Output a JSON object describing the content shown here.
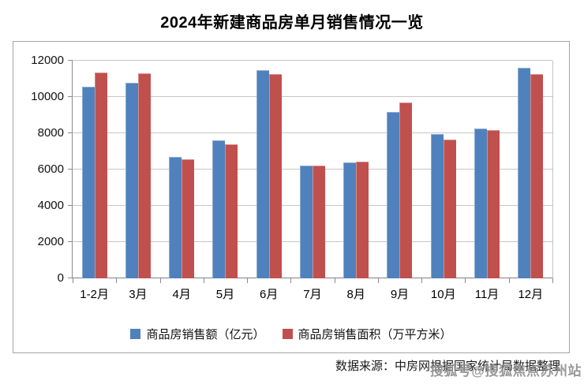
{
  "page": {
    "title": "2024年新建商品房单月销售情况一览",
    "source_note": "数据来源：中房网根据国家统计局数据整理",
    "watermark": "搜狐号@搜狐焦点苏州站"
  },
  "colors": {
    "series_amount": "#4F81BD",
    "series_area": "#C0504D",
    "gridline": "#c6c6c6",
    "axis": "#808080",
    "frame_border": "#a6a6a6",
    "watermark_gray": "#8f8f8f"
  },
  "chart_data": {
    "type": "bar",
    "title": "2024年新建商品房单月销售情况一览",
    "categories": [
      "1-2月",
      "3月",
      "4月",
      "5月",
      "6月",
      "7月",
      "8月",
      "9月",
      "10月",
      "11月",
      "12月"
    ],
    "series": [
      {
        "key": "sales-amount",
        "name": "商品房销售额（亿元）",
        "color": "#4F81BD",
        "values": [
          10566,
          10789,
          6712,
          7598,
          11468,
          6197,
          6393,
          9157,
          7975,
          8270,
          11625
        ]
      },
      {
        "key": "sales-area",
        "name": "商品房销售面积（万平方米）",
        "color": "#C0504D",
        "values": [
          11369,
          11299,
          6584,
          7390,
          11274,
          6233,
          6453,
          9682,
          7646,
          8188,
          11267
        ]
      }
    ],
    "xlabel": "",
    "ylabel": "",
    "ylim": [
      0,
      12000
    ],
    "ytick_labels": [
      0,
      2000,
      4000,
      6000,
      8000,
      10000,
      12000
    ],
    "grid": true,
    "legend_position": "bottom"
  }
}
